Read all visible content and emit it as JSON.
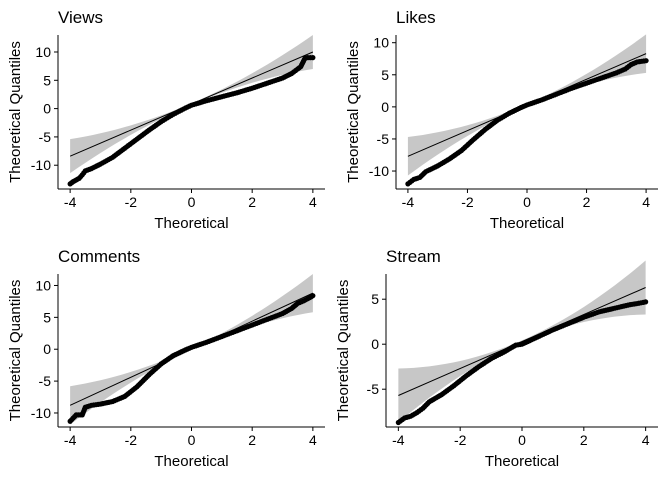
{
  "chart_data": [
    {
      "type": "scatter",
      "title": "Views",
      "xlabel": "Theoretical",
      "ylabel": "Theoretical Quantiles",
      "xlim": [
        -4.4,
        4.4
      ],
      "ylim": [
        -14.2,
        13.0
      ],
      "xticks": [
        -4,
        -2,
        0,
        2,
        4
      ],
      "yticks": [
        -10,
        -5,
        0,
        5,
        10
      ],
      "grid": false,
      "fit_line": {
        "slope": 2.3,
        "intercept": 0.8,
        "band": "grey"
      },
      "points": [
        [
          -4.0,
          -13.3
        ],
        [
          -3.9,
          -12.9
        ],
        [
          -3.8,
          -12.6
        ],
        [
          -3.7,
          -12.3
        ],
        [
          -3.6,
          -11.7
        ],
        [
          -3.5,
          -11.0
        ],
        [
          -3.3,
          -10.6
        ],
        [
          -3.0,
          -9.8
        ],
        [
          -2.6,
          -8.6
        ],
        [
          -2.2,
          -7.0
        ],
        [
          -1.8,
          -5.4
        ],
        [
          -1.4,
          -3.8
        ],
        [
          -1.0,
          -2.3
        ],
        [
          -0.6,
          -1.0
        ],
        [
          -0.2,
          0.1
        ],
        [
          0.0,
          0.6
        ],
        [
          0.5,
          1.4
        ],
        [
          1.0,
          2.1
        ],
        [
          1.5,
          2.8
        ],
        [
          2.0,
          3.6
        ],
        [
          2.5,
          4.5
        ],
        [
          3.0,
          5.4
        ],
        [
          3.3,
          6.2
        ],
        [
          3.5,
          7.0
        ],
        [
          3.6,
          7.4
        ],
        [
          3.75,
          9.0
        ],
        [
          4.0,
          9.0
        ]
      ]
    },
    {
      "type": "scatter",
      "title": "Likes",
      "xlabel": "Theoretical",
      "ylabel": "Theoretical Quantiles",
      "xlim": [
        -4.4,
        4.4
      ],
      "ylim": [
        -12.8,
        11.2
      ],
      "xticks": [
        -4,
        -2,
        0,
        2,
        4
      ],
      "yticks": [
        -10,
        -5,
        0,
        5,
        10
      ],
      "grid": false,
      "fit_line": {
        "slope": 2.0,
        "intercept": 0.3,
        "band": "grey"
      },
      "points": [
        [
          -4.0,
          -12.0
        ],
        [
          -3.8,
          -11.3
        ],
        [
          -3.6,
          -11.0
        ],
        [
          -3.4,
          -10.1
        ],
        [
          -3.0,
          -9.2
        ],
        [
          -2.6,
          -8.1
        ],
        [
          -2.2,
          -6.8
        ],
        [
          -1.8,
          -5.1
        ],
        [
          -1.4,
          -3.5
        ],
        [
          -1.0,
          -2.1
        ],
        [
          -0.6,
          -1.0
        ],
        [
          -0.2,
          -0.1
        ],
        [
          0.0,
          0.3
        ],
        [
          0.5,
          1.1
        ],
        [
          1.0,
          2.0
        ],
        [
          1.5,
          2.9
        ],
        [
          2.0,
          3.7
        ],
        [
          2.5,
          4.5
        ],
        [
          3.0,
          5.3
        ],
        [
          3.3,
          5.9
        ],
        [
          3.5,
          6.6
        ],
        [
          3.7,
          7.0
        ],
        [
          3.85,
          7.1
        ],
        [
          4.0,
          7.2
        ]
      ]
    },
    {
      "type": "scatter",
      "title": "Comments",
      "xlabel": "Theoretical",
      "ylabel": "Theoretical Quantiles",
      "xlim": [
        -4.4,
        4.4
      ],
      "ylim": [
        -12.2,
        11.8
      ],
      "xticks": [
        -4,
        -2,
        0,
        2,
        4
      ],
      "yticks": [
        -10,
        -5,
        0,
        5,
        10
      ],
      "grid": false,
      "fit_line": {
        "slope": 2.2,
        "intercept": 0.0,
        "band": "grey"
      },
      "points": [
        [
          -4.0,
          -11.3
        ],
        [
          -3.8,
          -10.3
        ],
        [
          -3.6,
          -10.3
        ],
        [
          -3.5,
          -9.1
        ],
        [
          -3.3,
          -8.8
        ],
        [
          -3.0,
          -8.6
        ],
        [
          -2.6,
          -8.2
        ],
        [
          -2.2,
          -7.4
        ],
        [
          -1.8,
          -5.9
        ],
        [
          -1.4,
          -4.0
        ],
        [
          -1.0,
          -2.3
        ],
        [
          -0.6,
          -1.0
        ],
        [
          -0.2,
          -0.1
        ],
        [
          0.0,
          0.3
        ],
        [
          0.5,
          1.1
        ],
        [
          1.0,
          2.0
        ],
        [
          1.5,
          2.9
        ],
        [
          2.0,
          3.8
        ],
        [
          2.5,
          4.7
        ],
        [
          3.0,
          5.6
        ],
        [
          3.3,
          6.4
        ],
        [
          3.5,
          7.2
        ],
        [
          3.7,
          7.6
        ],
        [
          3.9,
          8.1
        ],
        [
          4.0,
          8.4
        ]
      ]
    },
    {
      "type": "scatter",
      "title": "Stream",
      "xlabel": "Theoretical",
      "ylabel": "Theoretical Quantiles",
      "xlim": [
        -4.4,
        4.4
      ],
      "ylim": [
        -9.2,
        7.8
      ],
      "xticks": [
        -4,
        -2,
        0,
        2,
        4
      ],
      "yticks": [
        -5,
        0,
        5
      ],
      "grid": false,
      "fit_line": {
        "slope": 1.5,
        "intercept": 0.3,
        "band": "grey"
      },
      "points": [
        [
          -4.0,
          -8.7
        ],
        [
          -3.8,
          -8.2
        ],
        [
          -3.6,
          -8.0
        ],
        [
          -3.4,
          -7.6
        ],
        [
          -3.2,
          -7.1
        ],
        [
          -3.0,
          -6.4
        ],
        [
          -2.6,
          -5.6
        ],
        [
          -2.2,
          -4.6
        ],
        [
          -1.8,
          -3.5
        ],
        [
          -1.4,
          -2.5
        ],
        [
          -1.0,
          -1.6
        ],
        [
          -0.6,
          -0.9
        ],
        [
          -0.2,
          -0.1
        ],
        [
          0.0,
          0.0
        ],
        [
          0.5,
          0.8
        ],
        [
          1.0,
          1.6
        ],
        [
          1.5,
          2.3
        ],
        [
          2.0,
          3.0
        ],
        [
          2.5,
          3.6
        ],
        [
          3.0,
          4.0
        ],
        [
          3.5,
          4.4
        ],
        [
          3.7,
          4.5
        ],
        [
          3.85,
          4.6
        ],
        [
          4.0,
          4.7
        ]
      ]
    }
  ]
}
